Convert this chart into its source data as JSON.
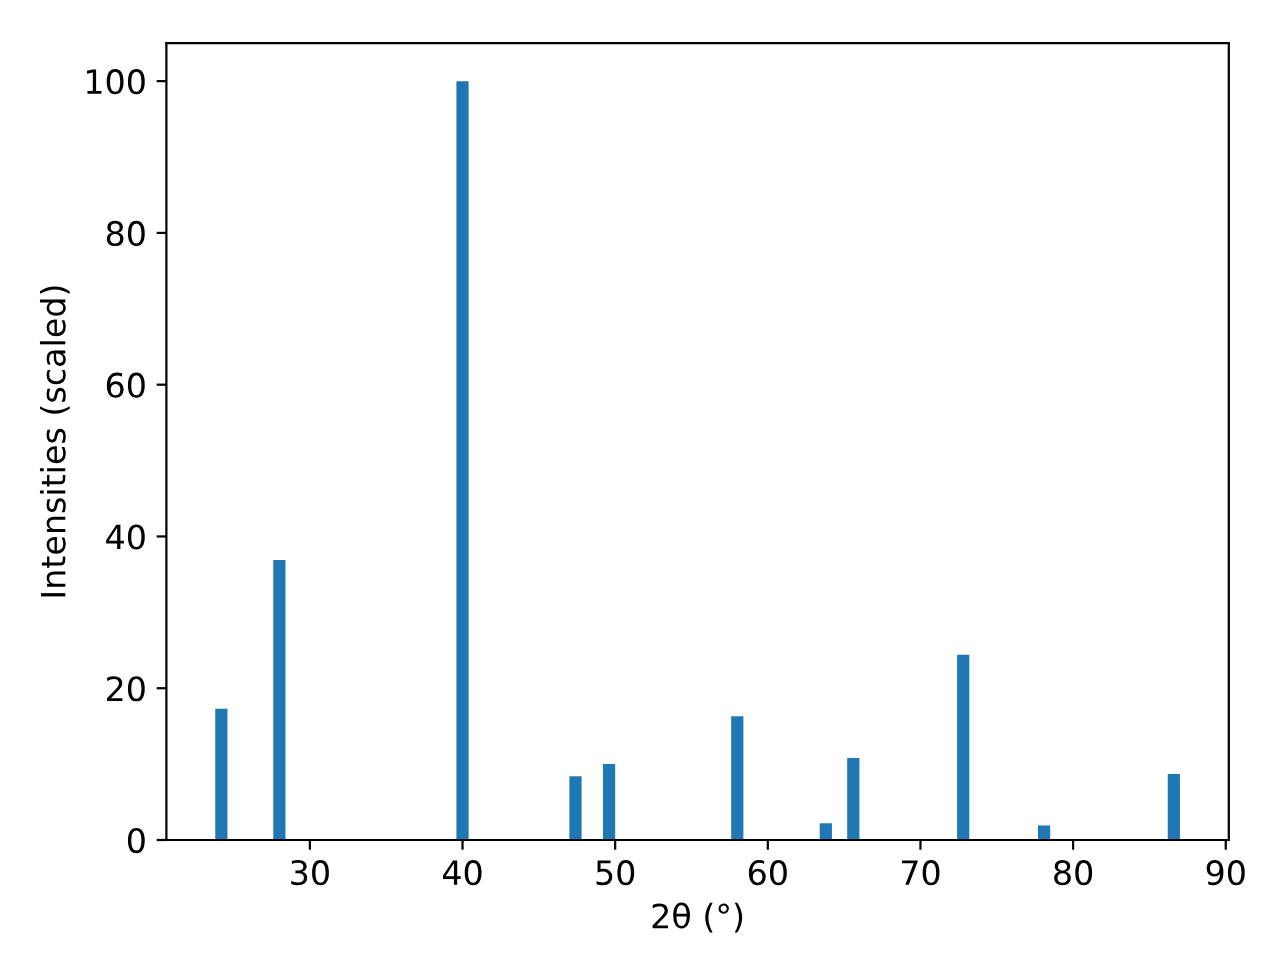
{
  "chart_data": {
    "type": "bar",
    "xlabel": "2θ (°)",
    "ylabel": "Intensities (scaled)",
    "x": [
      24.2,
      28.0,
      40.0,
      47.4,
      49.6,
      58.0,
      63.8,
      65.6,
      72.8,
      78.1,
      86.6
    ],
    "values": [
      17.3,
      36.9,
      100,
      8.4,
      10.0,
      16.3,
      2.2,
      10.8,
      24.4,
      1.9,
      8.7
    ],
    "color": "#1f77b4",
    "xlim": [
      20.6,
      90.2
    ],
    "xticks": [
      30,
      40,
      50,
      60,
      70,
      80,
      90
    ],
    "ylim": [
      0,
      105
    ],
    "yticks": [
      0,
      20,
      40,
      60,
      80,
      100
    ],
    "grid": false,
    "legend": false
  }
}
